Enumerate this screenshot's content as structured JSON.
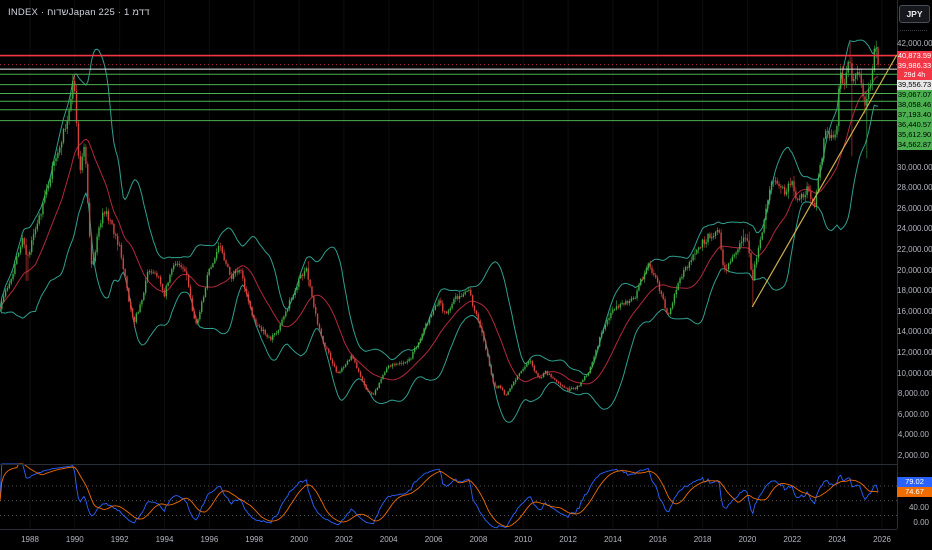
{
  "header": {
    "title": "INDEX · חודשJapan 225 · 1 מדד"
  },
  "price_axis": {
    "unit": "JPY",
    "plain_ticks": [
      {
        "value": 42000,
        "label": "42,000.00"
      },
      {
        "value": 30000,
        "label": "30,000.00"
      },
      {
        "value": 28000,
        "label": "28,000.00"
      },
      {
        "value": 26000,
        "label": "26,000.00"
      },
      {
        "value": 24000,
        "label": "24,000.00"
      },
      {
        "value": 22000,
        "label": "22,000.00"
      },
      {
        "value": 20000,
        "label": "20,000.00"
      },
      {
        "value": 18000,
        "label": "18,000.00"
      },
      {
        "value": 16000,
        "label": "16,000.00"
      },
      {
        "value": 14000,
        "label": "14,000.00"
      },
      {
        "value": 12000,
        "label": "12,000.00"
      },
      {
        "value": 10000,
        "label": "10,000.00"
      },
      {
        "value": 8000,
        "label": "8,000.00"
      },
      {
        "value": 6000,
        "label": "6,000.00"
      },
      {
        "value": 4000,
        "label": "4,000.00"
      },
      {
        "value": 2000,
        "label": "2,000.00"
      }
    ]
  },
  "time_axis": {
    "ticks": [
      "1988",
      "1990",
      "1992",
      "1994",
      "1996",
      "1998",
      "2000",
      "2002",
      "2004",
      "2006",
      "2008",
      "2010",
      "2012",
      "2014",
      "2016",
      "2018",
      "2020",
      "2022",
      "2024",
      "2026"
    ]
  },
  "rsi_pane": {
    "value_label": "79.02",
    "ma_label": "74.67",
    "axis_ticks": [
      {
        "value": 40,
        "label": "40.00"
      },
      {
        "value": 0,
        "label": "0.00"
      }
    ],
    "guide_levels": [
      70,
      50,
      30
    ]
  },
  "colors": {
    "up": "#3fae45",
    "down": "#d8423d",
    "band": "#2f9e8f",
    "basis": "#b2283c",
    "level_green": "#4caf50",
    "level_red": "#f23645",
    "level_white": "#e8e8e8",
    "trendline": "#cdb24a",
    "rsi": "#2962ff",
    "rsi_ma": "#ef6c00",
    "axis_text": "#b2b5be",
    "grid": "rgba(255,255,255,0.055)",
    "guide_dash": "#6b6e79"
  },
  "chart_data": {
    "type": "candlestick",
    "title": "Japan 225 Index, 1 month",
    "ylabel": "JPY",
    "ylim": [
      2000,
      42000
    ],
    "x_years": [
      1986.66,
      2026.66
    ],
    "grid": "vertical-faint",
    "monthly_close_anchors": [
      [
        1986.66,
        16500
      ],
      [
        1987.2,
        19600
      ],
      [
        1987.7,
        23300
      ],
      [
        1987.87,
        21200
      ],
      [
        1988.2,
        23500
      ],
      [
        1988.7,
        27500
      ],
      [
        1989.2,
        31500
      ],
      [
        1989.7,
        34500
      ],
      [
        1989.96,
        38900
      ],
      [
        1990.2,
        29500
      ],
      [
        1990.45,
        32000
      ],
      [
        1990.7,
        21500
      ],
      [
        1990.79,
        20200
      ],
      [
        1991.04,
        23800
      ],
      [
        1991.29,
        26000
      ],
      [
        1991.7,
        24100
      ],
      [
        1992.04,
        22000
      ],
      [
        1992.37,
        17500
      ],
      [
        1992.62,
        14900
      ],
      [
        1992.96,
        16900
      ],
      [
        1993.29,
        20100
      ],
      [
        1993.71,
        19600
      ],
      [
        1993.96,
        17400
      ],
      [
        1994.46,
        21000
      ],
      [
        1994.96,
        19700
      ],
      [
        1995.29,
        15600
      ],
      [
        1995.46,
        14900
      ],
      [
        1995.96,
        19800
      ],
      [
        1996.46,
        22300
      ],
      [
        1996.96,
        19300
      ],
      [
        1997.37,
        20200
      ],
      [
        1997.96,
        15200
      ],
      [
        1998.71,
        13400
      ],
      [
        1998.96,
        13800
      ],
      [
        1999.96,
        18900
      ],
      [
        2000.29,
        20300
      ],
      [
        2000.96,
        13700
      ],
      [
        2001.71,
        10000
      ],
      [
        2001.96,
        10500
      ],
      [
        2002.37,
        11700
      ],
      [
        2002.96,
        8600
      ],
      [
        2003.29,
        7900
      ],
      [
        2003.96,
        10600
      ],
      [
        2004.96,
        11400
      ],
      [
        2005.96,
        16100
      ],
      [
        2006.29,
        17000
      ],
      [
        2006.54,
        15500
      ],
      [
        2006.96,
        17200
      ],
      [
        2007.54,
        18250
      ],
      [
        2007.96,
        15300
      ],
      [
        2008.21,
        13600
      ],
      [
        2008.71,
        8600
      ],
      [
        2008.96,
        8800
      ],
      [
        2009.21,
        7900
      ],
      [
        2009.96,
        10500
      ],
      [
        2010.29,
        11300
      ],
      [
        2010.71,
        9400
      ],
      [
        2010.96,
        10200
      ],
      [
        2011.96,
        8400
      ],
      [
        2012.46,
        8700
      ],
      [
        2012.96,
        10400
      ],
      [
        2013.46,
        13700
      ],
      [
        2013.96,
        16300
      ],
      [
        2014.96,
        17400
      ],
      [
        2015.54,
        20600
      ],
      [
        2015.96,
        19000
      ],
      [
        2016.46,
        15600
      ],
      [
        2016.96,
        19100
      ],
      [
        2017.96,
        22700
      ],
      [
        2018.71,
        24100
      ],
      [
        2018.96,
        20000
      ],
      [
        2019.96,
        23600
      ],
      [
        2020.21,
        19000
      ],
      [
        2020.96,
        27400
      ],
      [
        2021.13,
        29000
      ],
      [
        2021.71,
        27400
      ],
      [
        2021.96,
        28800
      ],
      [
        2022.21,
        26800
      ],
      [
        2022.71,
        27900
      ],
      [
        2022.96,
        26100
      ],
      [
        2023.46,
        33200
      ],
      [
        2023.96,
        33400
      ],
      [
        2024.13,
        39000
      ],
      [
        2024.38,
        38200
      ],
      [
        2024.54,
        41000
      ],
      [
        2024.63,
        38700
      ],
      [
        2024.96,
        39900
      ],
      [
        2025.13,
        37200
      ],
      [
        2025.29,
        35800
      ],
      [
        2025.46,
        37900
      ],
      [
        2025.63,
        40600
      ],
      [
        2025.71,
        42000
      ],
      [
        2025.79,
        39986.33
      ]
    ],
    "wick_overrides": [
      {
        "t": 1987.87,
        "low": 19000
      },
      {
        "t": 2020.21,
        "low": 16466
      },
      {
        "t": 2024.63,
        "low": 31100
      },
      {
        "t": 2025.29,
        "low": 30900
      },
      {
        "t": 2024.54,
        "high": 42224
      },
      {
        "t": 2025.71,
        "high": 42330
      }
    ],
    "indicators": {
      "bollinger": {
        "length": 20,
        "mult": 2
      },
      "rsi": {
        "length": 14,
        "ma_length": 10
      }
    },
    "last_price": {
      "value": 39986.33,
      "label": "39,986.33",
      "countdown": "29d 4h",
      "direction": "down"
    },
    "levels": [
      {
        "value": 40873.59,
        "label": "40,873.59",
        "kind": "red"
      },
      {
        "value": 39556.73,
        "label": "39,556.73",
        "kind": "white"
      },
      {
        "value": 39067.07,
        "label": "39,067.07",
        "kind": "green"
      },
      {
        "value": 38058.46,
        "label": "38,058.46",
        "kind": "green"
      },
      {
        "value": 37193.4,
        "label": "37,193.40",
        "kind": "green"
      },
      {
        "value": 36440.57,
        "label": "36,440.57",
        "kind": "green"
      },
      {
        "value": 35612.9,
        "label": "35,612.90",
        "kind": "green"
      },
      {
        "value": 34562.87,
        "label": "34,562.87",
        "kind": "green"
      }
    ],
    "trendline": {
      "from": [
        2020.21,
        16466
      ],
      "to": [
        2026.66,
        40930
      ]
    },
    "rsi_last": {
      "value": 79.02,
      "ma": 74.67
    }
  }
}
